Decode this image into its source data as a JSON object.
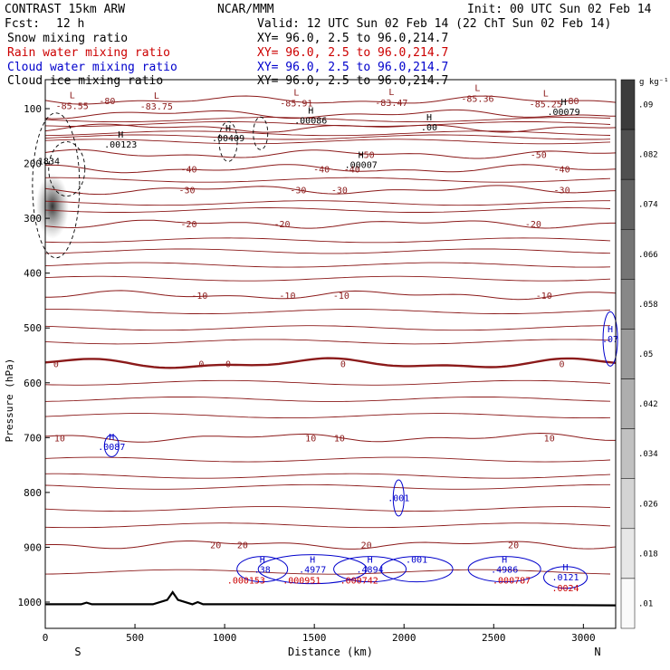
{
  "header": {
    "model": "CONTRAST 15km ARW",
    "center": "NCAR/MMM",
    "init": "Init: 00 UTC Sun 02 Feb 14",
    "fcst_label": "Fcst:",
    "fcst_value": "12 h",
    "valid": "Valid: 12 UTC Sun 02 Feb 14 (22 ChT Sun 02 Feb 14)"
  },
  "fields": [
    {
      "name": "Snow mixing ratio",
      "xy": "",
      "color": "#000000"
    },
    {
      "name": "Rain water mixing ratio",
      "xy": "XY=  96.0,  2.5 to  96.0,214.7",
      "color": "#cc0000"
    },
    {
      "name": "Cloud water mixing ratio",
      "xy": "XY=  96.0,  2.5 to  96.0,214.7",
      "color": "#0000cc"
    },
    {
      "name": "Cloud ice mixing ratio",
      "xy": "XY=  96.0,  2.5 to  96.0,214.7",
      "color": "#000000"
    }
  ],
  "snow_xy": "XY=  96.0,  2.5 to  96.0,214.7",
  "colors": {
    "temperature": "#8b1a1a",
    "rain": "#cc0000",
    "cloud_water": "#0000cc",
    "cloud_ice": "#000000",
    "terrain": "#000000"
  },
  "chart_data": {
    "type": "cross-section",
    "x_axis": {
      "label": "Distance (km)",
      "range": [
        0,
        3180
      ],
      "ticks": [
        0,
        500,
        1000,
        1500,
        2000,
        2500,
        3000
      ],
      "tick_labels": [
        "0",
        "500",
        "1000",
        "1500",
        "2000",
        "2500",
        "3000"
      ],
      "end_left": "S",
      "end_right": "N"
    },
    "y_axis": {
      "label": "Pressure (hPa)",
      "range": [
        1040,
        60
      ],
      "ticks": [
        100,
        200,
        300,
        400,
        500,
        600,
        700,
        800,
        900,
        1000
      ],
      "tick_labels": [
        "100",
        "200",
        "300",
        "400",
        "500",
        "600",
        "700",
        "800",
        "900",
        "1000"
      ]
    },
    "colorbar": {
      "units": "g kg⁻¹",
      "labels": [
        ".09",
        ".082",
        ".074",
        ".066",
        ".058",
        ".05",
        ".042",
        ".034",
        ".026",
        ".018",
        ".01"
      ]
    },
    "temperature_contours": [
      {
        "level": -80,
        "pressure": 85,
        "labels": [
          [
            345,
            "-80"
          ],
          [
            2930,
            "-80"
          ]
        ]
      },
      {
        "level": -70,
        "pressure": 110,
        "labels": []
      },
      {
        "level": -60,
        "pressure": 135,
        "labels": []
      },
      {
        "level": -50,
        "pressure": 183,
        "labels": [
          [
            1790,
            "-50"
          ],
          [
            2750,
            "-50"
          ]
        ]
      },
      {
        "level": -40,
        "pressure": 210,
        "labels": [
          [
            800,
            "-40"
          ],
          [
            1540,
            "-40"
          ],
          [
            1710,
            "-40"
          ],
          [
            2880,
            "-40"
          ]
        ]
      },
      {
        "level": -30,
        "pressure": 248,
        "labels": [
          [
            790,
            "-30"
          ],
          [
            1410,
            "-30"
          ],
          [
            1640,
            "-30"
          ],
          [
            2880,
            "-30"
          ]
        ]
      },
      {
        "level": -20,
        "pressure": 310,
        "labels": [
          [
            800,
            "-20"
          ],
          [
            1320,
            "-20"
          ],
          [
            2720,
            "-20"
          ]
        ]
      },
      {
        "level": -10,
        "pressure": 440,
        "labels": [
          [
            860,
            "-10"
          ],
          [
            1350,
            "-10"
          ],
          [
            1650,
            "-10"
          ],
          [
            2780,
            "-10"
          ]
        ]
      },
      {
        "level": 0,
        "pressure": 565,
        "labels": [
          [
            60,
            "0"
          ],
          [
            870,
            "0"
          ],
          [
            1020,
            "0"
          ],
          [
            1660,
            "0"
          ],
          [
            2880,
            "0"
          ]
        ]
      },
      {
        "level": 10,
        "pressure": 700,
        "labels": [
          [
            80,
            "10"
          ],
          [
            1480,
            "10"
          ],
          [
            1640,
            "10"
          ],
          [
            2810,
            "10"
          ]
        ]
      },
      {
        "level": 20,
        "pressure": 895,
        "labels": [
          [
            950,
            "20"
          ],
          [
            1100,
            "20"
          ],
          [
            1790,
            "20"
          ],
          [
            2610,
            "20"
          ]
        ]
      }
    ],
    "temperature_extrema": [
      {
        "x": 150,
        "p": 91,
        "type": "L",
        "value": "-85.55"
      },
      {
        "x": 620,
        "p": 92,
        "type": "L",
        "value": "-83.75"
      },
      {
        "x": 1400,
        "p": 86,
        "type": "L",
        "value": "-85.91"
      },
      {
        "x": 1930,
        "p": 85,
        "type": "L",
        "value": "-83.47"
      },
      {
        "x": 2410,
        "p": 78,
        "type": "L",
        "value": "-85.36"
      },
      {
        "x": 2790,
        "p": 88,
        "type": "L",
        "value": "-85.25"
      }
    ],
    "ice_extrema": [
      {
        "x": 420,
        "p": 163,
        "type": "H",
        "value": ".00123"
      },
      {
        "x": 1020,
        "p": 151,
        "type": "H",
        "value": ".00409"
      },
      {
        "x": 1480,
        "p": 119,
        "type": "H",
        "value": ".00086"
      },
      {
        "x": 1760,
        "p": 200,
        "type": "H",
        "value": ".00007"
      },
      {
        "x": 2140,
        "p": 131,
        "type": "H",
        "value": ".00"
      },
      {
        "x": 2890,
        "p": 103,
        "type": "H",
        "value": ".00079"
      },
      {
        "x": 20,
        "p": 193,
        "type": "",
        "value": "1834"
      }
    ],
    "cloud_water_extrema": [
      {
        "x": 370,
        "p": 714,
        "type": "H",
        "value": ".0087"
      },
      {
        "x": 1210,
        "p": 938,
        "type": "H",
        "value": ".38"
      },
      {
        "x": 1490,
        "p": 938,
        "type": "H",
        "value": ".4977"
      },
      {
        "x": 1810,
        "p": 938,
        "type": "H",
        "value": ".4894"
      },
      {
        "x": 2070,
        "p": 920,
        "type": "",
        "value": ".001"
      },
      {
        "x": 2560,
        "p": 938,
        "type": "H",
        "value": ".4986"
      },
      {
        "x": 2900,
        "p": 952,
        "type": "H",
        "value": ".0121"
      },
      {
        "x": 1970,
        "p": 808,
        "type": "",
        "value": ".001"
      },
      {
        "x": 3150,
        "p": 518,
        "type": "H",
        "value": ".07"
      }
    ],
    "rain_extrema": [
      {
        "x": 1120,
        "p": 958,
        "value": ".000153"
      },
      {
        "x": 1430,
        "p": 958,
        "value": ".000951"
      },
      {
        "x": 1750,
        "p": 958,
        "value": ".000742"
      },
      {
        "x": 2600,
        "p": 958,
        "value": ".000787"
      },
      {
        "x": 2900,
        "p": 972,
        "value": ".0024"
      }
    ],
    "terrain": {
      "x": [
        0,
        200,
        230,
        260,
        600,
        680,
        710,
        740,
        820,
        850,
        880,
        1500,
        2500,
        3180
      ],
      "p": [
        1004,
        1004,
        1001,
        1004,
        1004,
        996,
        982,
        996,
        1004,
        1000,
        1004,
        1004,
        1005,
        1006
      ]
    }
  }
}
